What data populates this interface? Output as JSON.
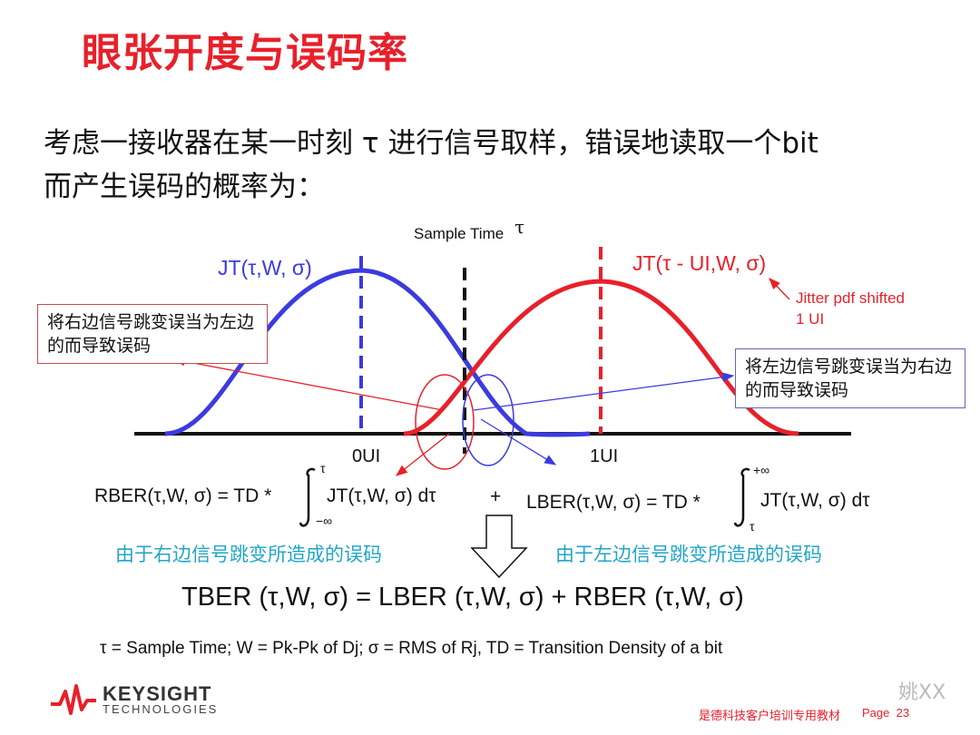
{
  "slide": {
    "title": "眼张开度与误码率",
    "intro_line1": "考虑一接收器在某一时刻 τ 进行信号取样，错误地读取一个bit",
    "intro_line2": "而产生误码的概率为："
  },
  "diagram": {
    "sample_time_label": "Sample Time",
    "tau_symbol": "τ",
    "left_curve_label": "JT(τ,W, σ)",
    "right_curve_label": "JT(τ - UI,W, σ)",
    "shift_note_line1": "Jitter pdf shifted",
    "shift_note_line2": "1 UI",
    "axis_label_0ui": "0UI",
    "axis_label_1ui": "1UI",
    "callout_left": "将右边信号跳变误当为左边的而导致误码",
    "callout_right": "将左边信号跳变误当为右边的而导致误码",
    "colors": {
      "blue": "#3b3be0",
      "red": "#e8202a",
      "black": "#111111"
    }
  },
  "formulas": {
    "rber_lhs": "RBER(τ,W, σ) = TD *",
    "rber_integrand": "JT(τ,W, σ) dτ",
    "rber_upper": "τ",
    "rber_lower": "−∞",
    "plus": "+",
    "lber_lhs": "LBER(τ,W, σ) = TD *",
    "lber_integrand": "JT(τ,W, σ) dτ",
    "lber_upper": "+∞",
    "lber_lower": "τ",
    "rber_caption": "由于右边信号跳变所造成的误码",
    "lber_caption": "由于左边信号跳变所造成的误码",
    "tber": "TBER (τ,W, σ)  = LBER (τ,W, σ) + RBER (τ,W, σ)",
    "legend": "τ = Sample Time;  W = Pk-Pk of Dj;  σ = RMS of Rj, TD = Transition Density of a bit"
  },
  "footer": {
    "logo_name": "KEYSIGHT",
    "logo_sub": "TECHNOLOGIES",
    "footer_text": "是德科技客户培训专用教材",
    "page_label": "Page",
    "page_number": "23",
    "watermark": "姚XX"
  }
}
